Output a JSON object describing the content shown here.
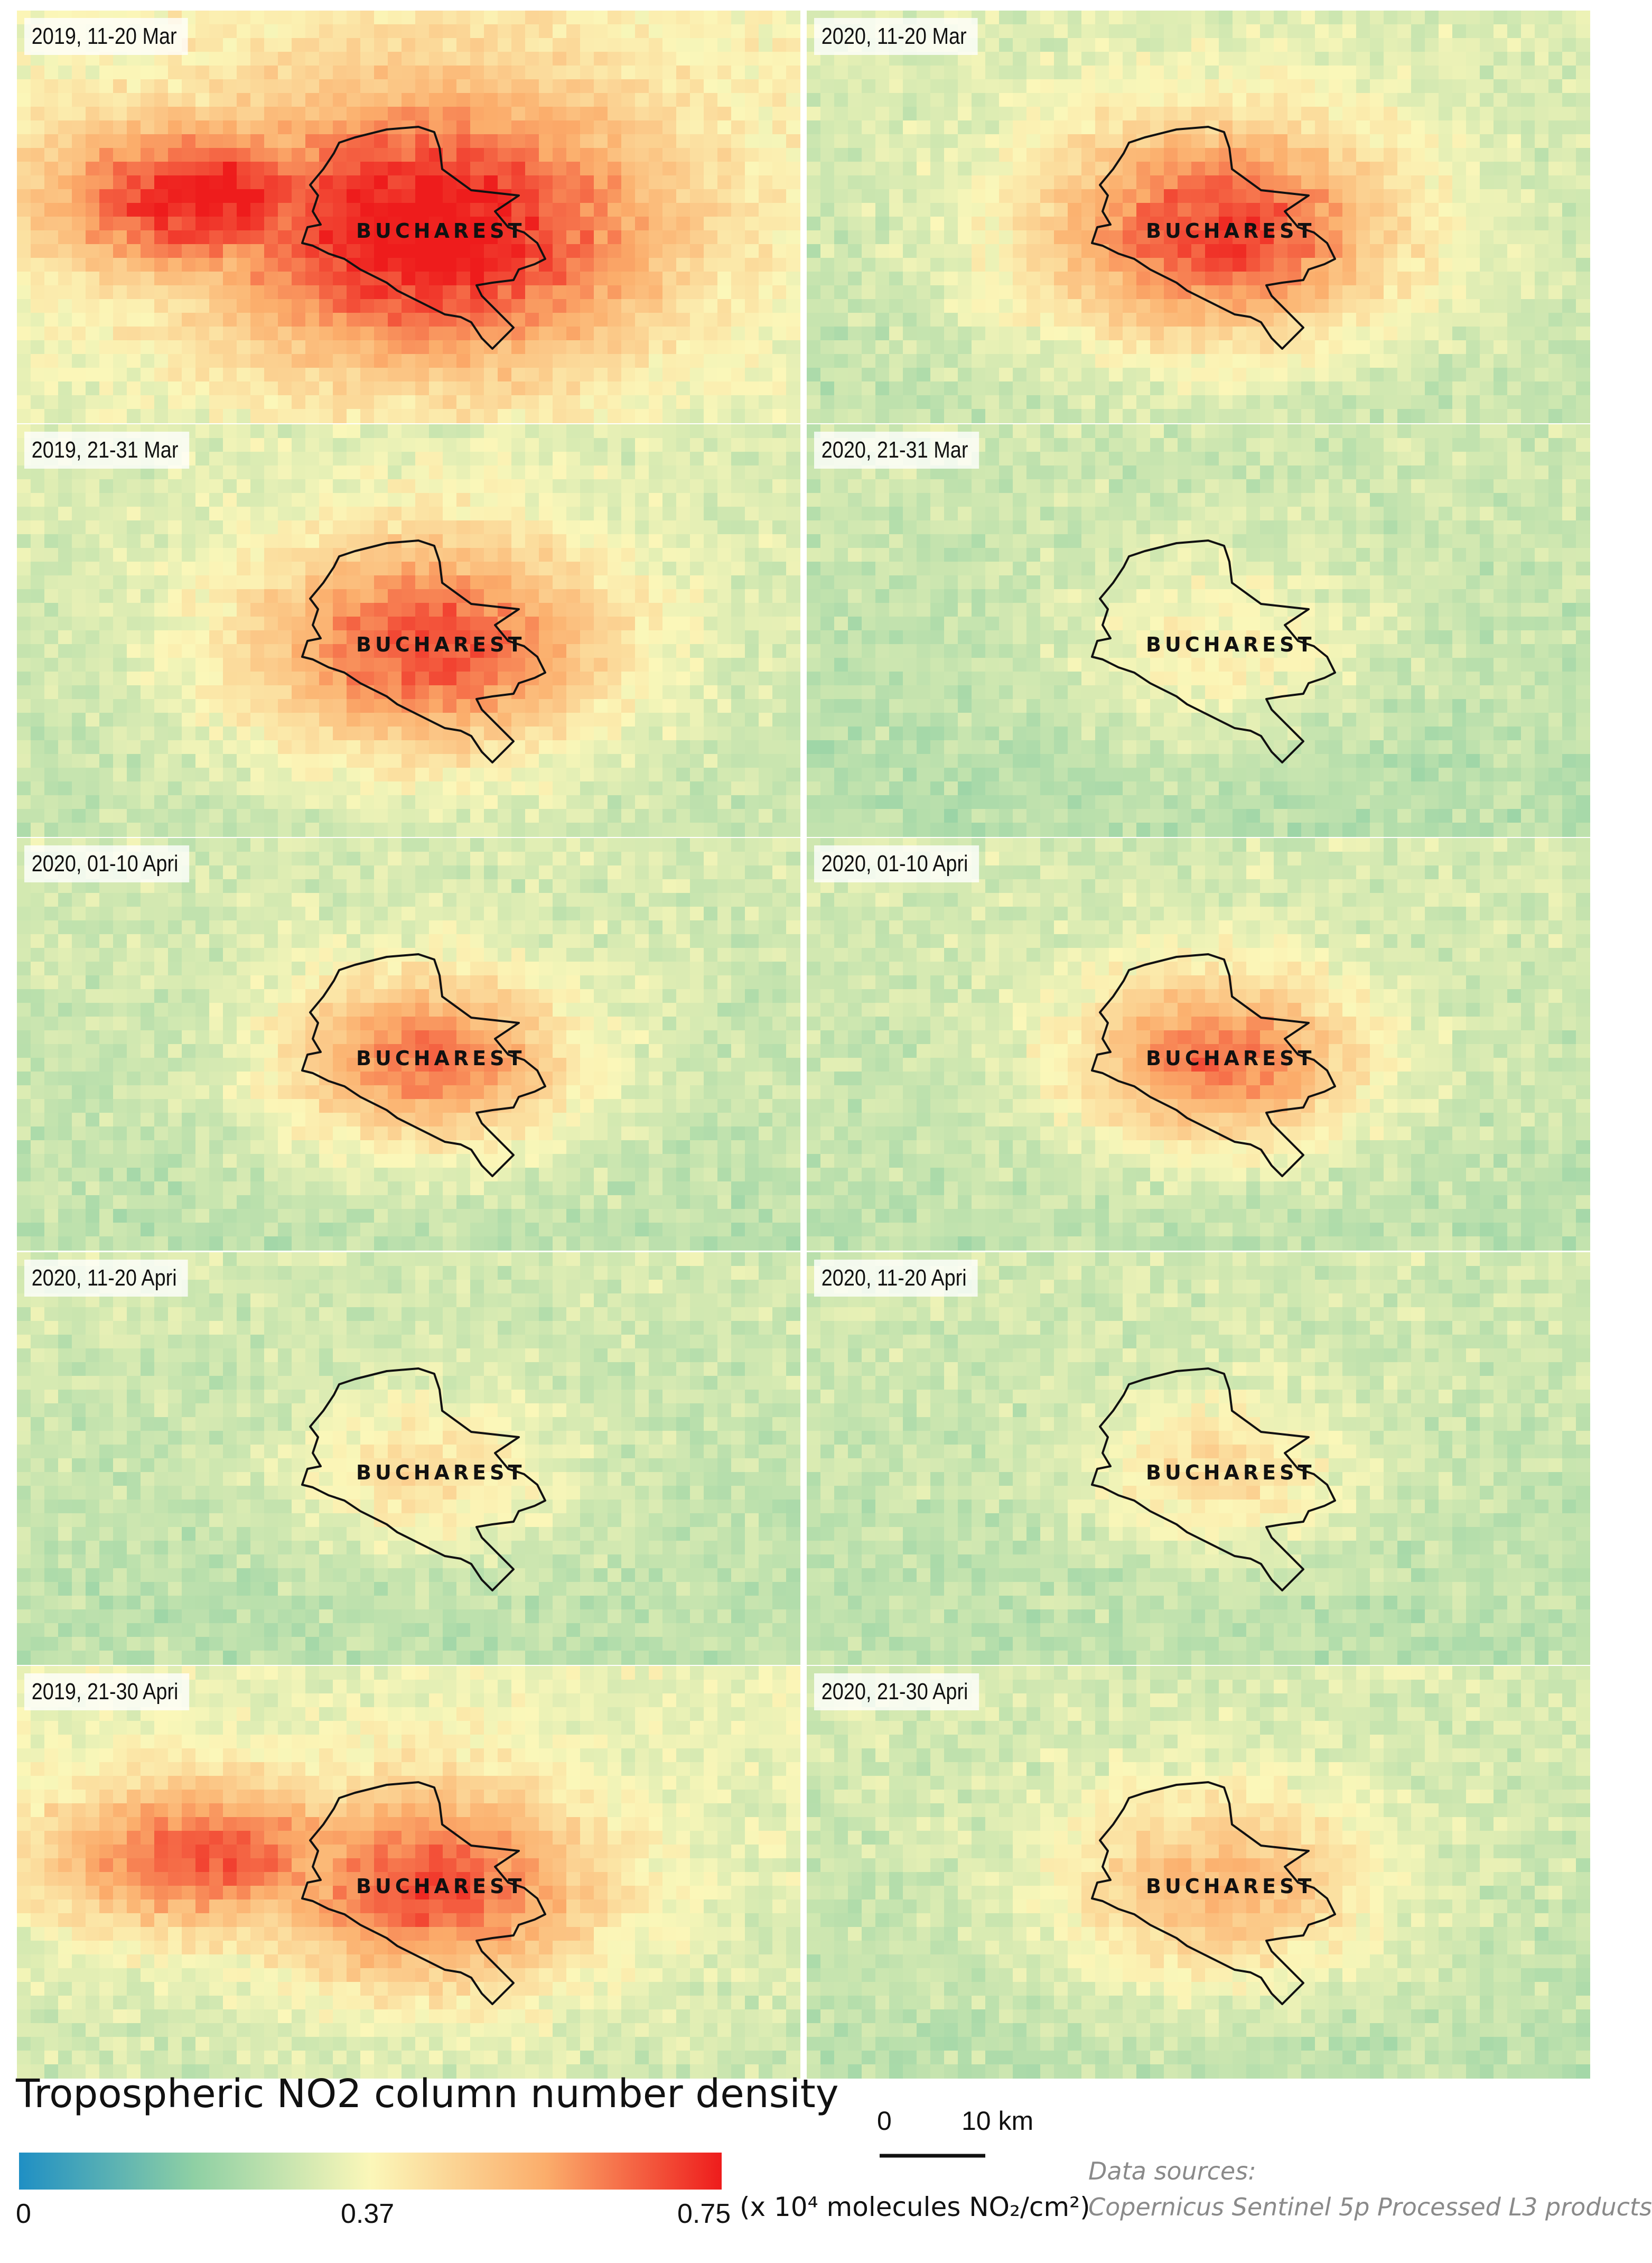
{
  "colors": {
    "scale_low": "#1f8fc4",
    "scale_mid": "#fbf7b9",
    "scale_high": "#ee1c1c",
    "boundary": "#111111",
    "panel_label_bg": "#ffffff",
    "source_text": "#8a8a8a"
  },
  "legend": {
    "title": "Tropospheric NO2 column number density",
    "tick_min": "0",
    "tick_mid": "0.37",
    "tick_max": "0.75",
    "units": "(x 10⁴ molecules NO₂/cm²)"
  },
  "scale_bar": {
    "start": "0",
    "end": "10 km"
  },
  "sources": {
    "heading": "Data sources:",
    "line": "Copernicus Sentinel 5p Processed L3 products"
  },
  "city_name": "BUCHAREST",
  "panels": [
    {
      "label": "2019, 11-20 Mar",
      "no2_level": 0.95,
      "spread": 1.4,
      "bias": 0.55
    },
    {
      "label": "2020, 11-20 Mar",
      "no2_level": 0.9,
      "spread": 1.1,
      "bias": 0.05
    },
    {
      "label": "2019, 21-31 Mar",
      "no2_level": 0.85,
      "spread": 1.1,
      "bias": 0.1
    },
    {
      "label": "2020, 21-31 Mar",
      "no2_level": 0.25,
      "spread": 0.9,
      "bias": -0.12
    },
    {
      "label": "2020, 01-10 Apri",
      "no2_level": 0.78,
      "spread": 0.85,
      "bias": 0.0
    },
    {
      "label": "2020, 01-10 Apri",
      "no2_level": 0.78,
      "spread": 0.85,
      "bias": 0.0
    },
    {
      "label": "2020, 11-20 Apri",
      "no2_level": 0.35,
      "spread": 0.75,
      "bias": -0.05
    },
    {
      "label": "2020, 11-20 Apri",
      "no2_level": 0.35,
      "spread": 0.75,
      "bias": -0.05
    },
    {
      "label": "2019, 21-30 Apri",
      "no2_level": 0.8,
      "spread": 1.0,
      "bias": 0.3
    },
    {
      "label": "2020, 21-30 Apri",
      "no2_level": 0.55,
      "spread": 0.95,
      "bias": 0.0
    }
  ]
}
